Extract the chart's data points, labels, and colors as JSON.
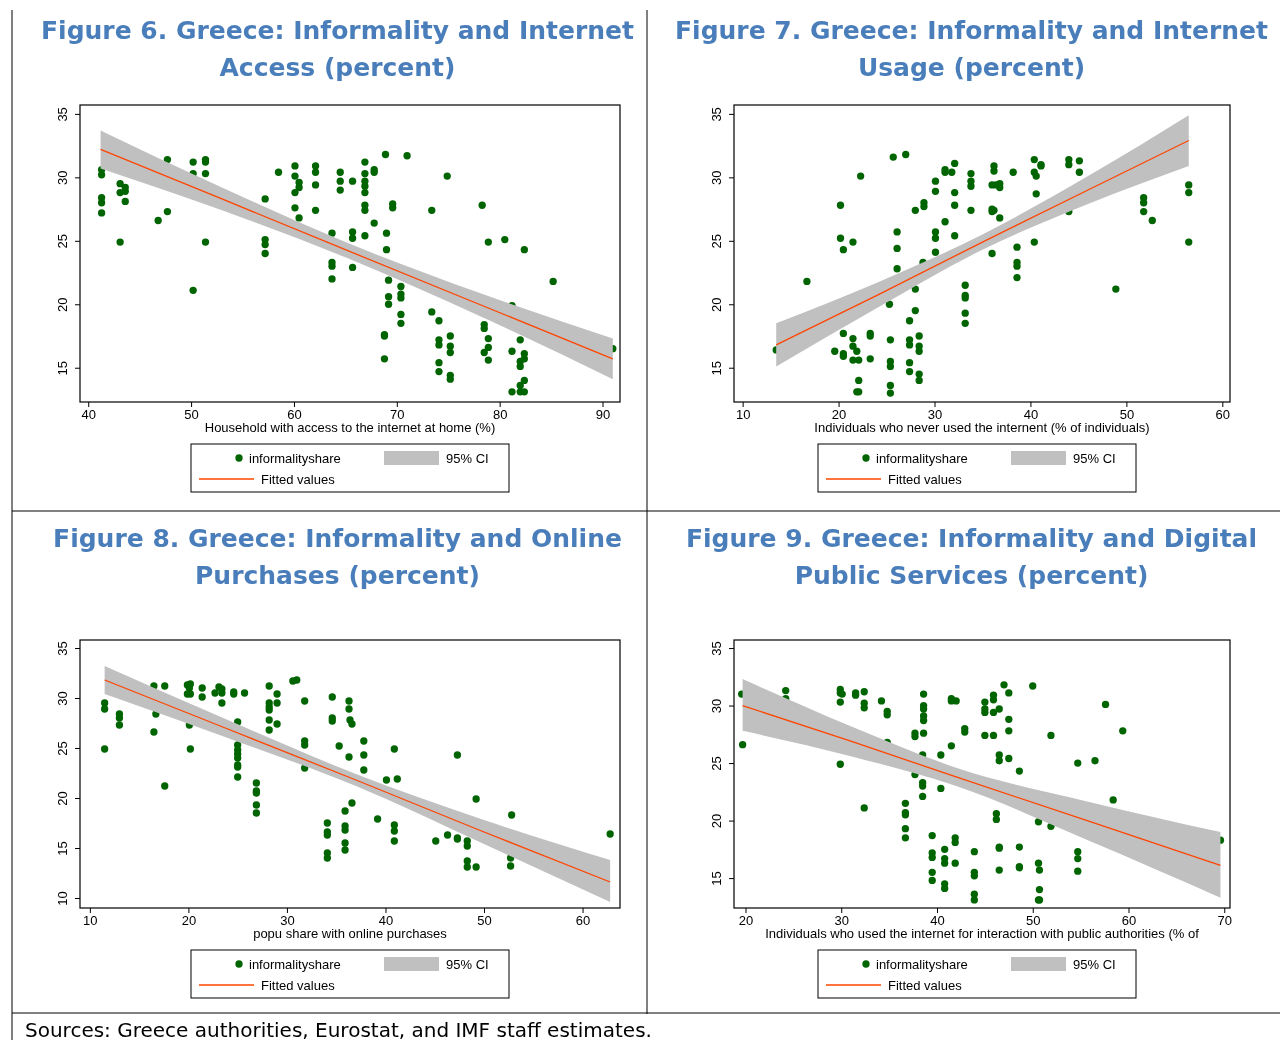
{
  "chart_data": [
    {
      "type": "scatter",
      "title": "Figure 6. Greece: Informality and Internet Access (percent)",
      "xlabel": "Household with access to the internet at home (%)",
      "xlim": [
        39.2,
        91.7
      ],
      "ylim": [
        12.3,
        35.7
      ],
      "xticks": [
        40,
        50,
        60,
        70,
        80,
        90
      ],
      "yticks": [
        15,
        20,
        25,
        30,
        35
      ],
      "legend": "bottom",
      "grid": false,
      "annotations": [
        "95% CI"
      ],
      "series": [
        {
          "name": "informalityshare",
          "type": "scatter",
          "marker": "circle",
          "color": "#006400",
          "x": [
            41.3,
            41.3,
            41.3,
            41.3,
            41.3,
            43.1,
            43.1,
            43.6,
            43.6,
            43.6,
            43.1,
            46.8,
            47.7,
            47.7,
            50.2,
            50.2,
            50.2,
            51.4,
            51.4,
            51.4,
            51.4,
            57.2,
            57.2,
            57.2,
            57.2,
            58.5,
            60.1,
            60.1,
            60.1,
            60.1,
            60.5,
            60.5,
            60.5,
            62.1,
            62.1,
            62.1,
            62.1,
            63.7,
            63.7,
            63.7,
            63.7,
            64.5,
            64.5,
            64.5,
            65.7,
            65.7,
            65.7,
            65.7,
            66.9,
            66.9,
            66.9,
            66.9,
            66.9,
            66.9,
            66.9,
            66.9,
            67.8,
            67.8,
            67.8,
            68.9,
            68.8,
            68.8,
            68.8,
            69.0,
            69.0,
            69.2,
            69.2,
            69.2,
            69.6,
            69.6,
            70.4,
            70.4,
            70.4,
            70.4,
            70.4,
            71.0,
            73.4,
            73.4,
            74.1,
            74.1,
            74.1,
            74.1,
            74.1,
            74.9,
            75.2,
            75.2,
            75.2,
            75.2,
            75.2,
            78.3,
            78.5,
            78.5,
            78.5,
            78.9,
            78.9,
            78.9,
            78.9,
            80.5,
            81.2,
            81.2,
            81.2,
            82.0,
            82.0,
            82.0,
            82.0,
            82.0,
            82.4,
            82.4,
            82.4,
            82.4,
            82.4,
            85.2,
            91.0
          ],
          "values": [
            30.6,
            30.2,
            28.4,
            28.0,
            27.2,
            29.5,
            28.8,
            29.2,
            28.9,
            28.1,
            24.9,
            26.6,
            27.3,
            31.4,
            31.2,
            30.3,
            21.1,
            31.4,
            31.2,
            30.3,
            24.9,
            28.3,
            25.1,
            24.7,
            24.0,
            30.4,
            30.9,
            30.1,
            28.8,
            27.6,
            29.6,
            29.2,
            26.8,
            30.9,
            30.4,
            29.4,
            27.4,
            25.6,
            23.3,
            23.0,
            22.0,
            30.4,
            29.7,
            29.0,
            29.7,
            25.7,
            25.2,
            22.9,
            31.2,
            30.3,
            29.7,
            29.3,
            28.8,
            27.8,
            27.4,
            25.4,
            26.4,
            30.6,
            30.4,
            31.8,
            17.6,
            15.7,
            17.5,
            25.6,
            24.3,
            21.9,
            20.6,
            20.0,
            27.9,
            27.6,
            21.4,
            20.8,
            20.5,
            19.2,
            18.5,
            31.7,
            27.4,
            19.4,
            18.7,
            17.2,
            16.8,
            15.4,
            14.7,
            30.1,
            17.5,
            16.7,
            16.2,
            14.4,
            14.1,
            27.8,
            18.4,
            18.1,
            16.2,
            17.3,
            16.6,
            15.6,
            24.9,
            25.1,
            19.9,
            16.3,
            13.1,
            17.2,
            15.5,
            15.1,
            13.6,
            13.1,
            24.3,
            16.1,
            15.7,
            14.0,
            13.1,
            21.8,
            16.5
          ]
        },
        {
          "name": "Fitted values",
          "type": "line",
          "color": "#ff4500",
          "x": [
            41.2,
            53,
            65,
            78,
            91
          ],
          "values": [
            32.2,
            28.3,
            24.3,
            20.0,
            15.7
          ],
          "lower": [
            30.7,
            27.4,
            23.7,
            19.1,
            14.1
          ],
          "upper": [
            33.7,
            29.2,
            24.9,
            20.9,
            17.3
          ]
        }
      ]
    },
    {
      "type": "scatter",
      "title": "Figure 7.  Greece: Informality and Internet Usage (percent)",
      "xlabel": "Individuals who never used the internent (% of individuals)",
      "xlim": [
        9.1,
        60.8
      ],
      "ylim": [
        12.3,
        35.7
      ],
      "xticks": [
        10,
        20,
        30,
        40,
        50,
        60
      ],
      "yticks": [
        15,
        20,
        25,
        30,
        35
      ],
      "legend": "bottom",
      "grid": false,
      "annotations": [
        "95% CI"
      ],
      "series": [
        {
          "name": "informalityshare",
          "type": "scatter",
          "marker": "circle",
          "color": "#006400",
          "x": [
            13.5,
            16.7,
            19.6,
            20.2,
            20.2,
            20.5,
            20.5,
            20.5,
            20.5,
            21.5,
            21.5,
            21.5,
            21.5,
            21.9,
            22.1,
            22.1,
            21.9,
            22.1,
            22.3,
            23.3,
            23.3,
            23.3,
            25.3,
            25.4,
            25.4,
            25.4,
            25.4,
            25.4,
            25.7,
            26.1,
            26.1,
            26.1,
            27.0,
            27.4,
            27.4,
            27.4,
            27.4,
            27.4,
            28.0,
            28.0,
            28.0,
            28.4,
            28.4,
            28.4,
            28.4,
            28.4,
            28.9,
            28.9,
            28.8,
            30.1,
            30.1,
            30.1,
            30.1,
            30.1,
            31.1,
            31.1,
            31.1,
            31.8,
            32.1,
            32.1,
            32.1,
            32.1,
            33.2,
            33.2,
            33.2,
            33.2,
            33.2,
            33.8,
            33.8,
            33.8,
            33.8,
            36.2,
            36.2,
            36.0,
            36.4,
            36.0,
            36.0,
            36.2,
            36.0,
            36.8,
            36.8,
            36.8,
            38.2,
            38.6,
            38.6,
            38.6,
            38.6,
            40.4,
            40.4,
            40.6,
            40.6,
            40.4,
            41.1,
            41.1,
            44.0,
            44.0,
            45.1,
            45.1,
            44.0,
            48.9,
            51.8,
            51.8,
            51.8,
            52.7,
            56.5,
            56.5,
            56.5
          ],
          "values": [
            16.4,
            21.8,
            16.3,
            27.8,
            25.2,
            24.3,
            17.7,
            16.1,
            15.9,
            24.9,
            17.3,
            16.7,
            15.6,
            16.3,
            15.6,
            14.0,
            13.1,
            13.1,
            30.1,
            17.7,
            17.5,
            15.7,
            20.0,
            17.2,
            15.5,
            15.1,
            13.6,
            13.0,
            31.6,
            25.7,
            24.4,
            22.8,
            31.8,
            18.7,
            17.2,
            16.8,
            15.4,
            14.7,
            27.4,
            21.2,
            19.5,
            17.5,
            16.7,
            16.3,
            14.5,
            14.0,
            28.0,
            27.7,
            23.3,
            29.7,
            28.9,
            25.7,
            25.2,
            24.1,
            30.6,
            30.4,
            26.5,
            30.4,
            31.1,
            28.8,
            27.8,
            25.4,
            21.5,
            20.7,
            20.5,
            19.3,
            18.5,
            30.3,
            29.7,
            29.3,
            27.4,
            30.9,
            30.5,
            29.4,
            29.4,
            27.5,
            27.3,
            27.4,
            24.0,
            29.5,
            29.2,
            26.8,
            30.4,
            24.5,
            23.3,
            23.0,
            22.1,
            31.4,
            30.4,
            30.1,
            28.7,
            24.9,
            31.0,
            30.9,
            31.4,
            31.0,
            31.3,
            30.4,
            27.3,
            21.2,
            28.4,
            28.0,
            27.3,
            26.6,
            29.4,
            28.8,
            24.9
          ]
        },
        {
          "name": "Fitted values",
          "type": "line",
          "color": "#ff4500",
          "x": [
            13.5,
            24,
            35,
            46,
            56.5
          ],
          "values": [
            16.8,
            20.7,
            24.9,
            29.0,
            32.9
          ],
          "lower": [
            15.1,
            19.7,
            24.3,
            27.9,
            30.9
          ],
          "upper": [
            18.5,
            21.7,
            25.5,
            30.1,
            34.9
          ]
        }
      ]
    },
    {
      "type": "scatter",
      "title": "Figure 8. Greece: Informality and Online Purchases (percent)",
      "xlabel": "popu share with online purchases",
      "xlim": [
        9.0,
        63.8
      ],
      "ylim": [
        9.0,
        35.8
      ],
      "xticks": [
        10,
        20,
        30,
        40,
        50,
        60
      ],
      "yticks": [
        10,
        15,
        20,
        25,
        30,
        35
      ],
      "legend": "bottom",
      "grid": false,
      "annotations": [
        "95% CI",
        "Sources: Greece authorities, Eurostat, and IMF staff estimates."
      ],
      "series": [
        {
          "name": "informalityshare",
          "type": "scatter",
          "marker": "circle",
          "color": "#006400",
          "x": [
            11.5,
            11.5,
            11.5,
            13.0,
            13.0,
            13.0,
            16.5,
            16.5,
            16.7,
            17.6,
            17.6,
            19.9,
            19.9,
            20.1,
            20.2,
            20.2,
            20.1,
            20.2,
            21.4,
            21.4,
            22.7,
            23.1,
            23.4,
            23.4,
            23.4,
            24.6,
            24.6,
            25.7,
            25.0,
            25.0,
            25.0,
            25.0,
            25.0,
            25.0,
            25.0,
            25.0,
            26.9,
            26.9,
            26.9,
            26.9,
            26.9,
            28.2,
            28.2,
            28.2,
            28.2,
            28.2,
            28.2,
            29.0,
            29.0,
            29.0,
            30.6,
            31.0,
            31.8,
            31.8,
            31.8,
            31.8,
            34.6,
            34.6,
            34.6,
            35.3,
            34.1,
            34.1,
            34.1,
            34.1,
            34.1,
            35.9,
            35.9,
            35.9,
            35.9,
            35.9,
            36.3,
            36.3,
            36.4,
            36.6,
            36.3,
            36.6,
            37.8,
            37.8,
            37.8,
            39.2,
            40.1,
            40.9,
            41.2,
            40.9,
            40.9,
            40.9,
            45.1,
            46.3,
            47.3,
            47.3,
            47.3,
            48.3,
            48.3,
            48.3,
            48.3,
            49.2,
            49.2,
            52.8,
            52.7,
            52.7,
            62.8
          ],
          "values": [
            29.5,
            28.9,
            24.9,
            28.4,
            28.0,
            27.3,
            31.2,
            26.6,
            28.4,
            31.2,
            21.2,
            31.3,
            30.4,
            31.0,
            31.4,
            30.4,
            27.3,
            24.9,
            31.0,
            30.1,
            30.5,
            31.1,
            30.9,
            30.5,
            29.5,
            30.6,
            30.4,
            30.5,
            27.6,
            25.3,
            24.8,
            24.4,
            24.0,
            23.3,
            23.1,
            22.1,
            21.5,
            20.7,
            20.5,
            19.3,
            18.5,
            31.2,
            29.5,
            29.1,
            28.8,
            27.8,
            26.8,
            30.4,
            29.5,
            27.4,
            31.7,
            31.8,
            29.7,
            25.7,
            25.3,
            23.0,
            30.1,
            28.0,
            27.7,
            25.2,
            17.5,
            16.6,
            16.3,
            14.5,
            14.0,
            18.7,
            17.2,
            16.8,
            15.5,
            14.8,
            29.7,
            28.9,
            27.8,
            27.4,
            24.1,
            19.5,
            25.7,
            24.3,
            22.8,
            17.9,
            21.8,
            24.9,
            21.9,
            17.3,
            16.7,
            15.7,
            15.7,
            16.3,
            24.3,
            16.0,
            15.9,
            15.7,
            15.2,
            13.7,
            13.1,
            19.9,
            13.1,
            18.3,
            14.0,
            13.2,
            16.4
          ]
        },
        {
          "name": "Fitted values",
          "type": "line",
          "color": "#ff4500",
          "x": [
            11.5,
            24,
            37,
            50,
            62.8
          ],
          "values": [
            31.8,
            26.9,
            21.8,
            16.6,
            11.6
          ],
          "lower": [
            30.4,
            26.0,
            21.2,
            15.4,
            9.6
          ],
          "upper": [
            33.2,
            27.8,
            22.4,
            17.8,
            13.8
          ]
        }
      ]
    },
    {
      "type": "scatter",
      "title": "Figure 9. Greece: Informality and Digital Public Services (percent)",
      "xlabel": "Individuals who used the internet for interaction with public authorities (% of",
      "xlim": [
        18.8,
        70.6
      ],
      "ylim": [
        12.4,
        35.7
      ],
      "xticks": [
        20,
        30,
        40,
        50,
        60,
        70
      ],
      "yticks": [
        15,
        20,
        25,
        30,
        35
      ],
      "legend": "bottom",
      "grid": false,
      "annotations": [
        "95% CI"
      ],
      "series": [
        {
          "name": "informalityshare",
          "type": "scatter",
          "marker": "circle",
          "color": "#006400",
          "x": [
            19.6,
            19.7,
            24.2,
            24.2,
            29.9,
            29.9,
            30.1,
            29.9,
            29.9,
            31.5,
            31.5,
            32.4,
            32.4,
            32.4,
            32.4,
            34.2,
            34.8,
            34.8,
            34.8,
            36.7,
            36.7,
            36.7,
            36.7,
            36.7,
            37.7,
            37.7,
            37.7,
            38.6,
            38.6,
            38.6,
            38.6,
            38.6,
            38.6,
            38.5,
            38.5,
            38.5,
            38.5,
            39.5,
            39.5,
            39.5,
            39.5,
            39.5,
            40.4,
            40.4,
            40.8,
            40.8,
            40.8,
            40.8,
            40.8,
            41.5,
            41.5,
            42.0,
            41.5,
            41.9,
            41.9,
            41.9,
            42.9,
            42.9,
            43.9,
            43.9,
            43.9,
            43.9,
            43.9,
            45.0,
            45.0,
            45.0,
            45.0,
            45.9,
            45.9,
            45.9,
            45.9,
            46.5,
            46.5,
            46.5,
            46.5,
            46.2,
            46.2,
            46.5,
            46.5,
            47.0,
            47.5,
            47.5,
            47.5,
            47.5,
            48.6,
            48.6,
            48.6,
            48.6,
            50.0,
            50.6,
            50.6,
            50.7,
            50.7,
            50.6,
            50.7,
            51.9,
            51.9,
            54.7,
            54.7,
            54.7,
            54.7,
            56.5,
            57.6,
            58.4,
            59.4,
            69.6
          ],
          "values": [
            31.0,
            26.6,
            31.3,
            30.6,
            31.4,
            31.1,
            31.0,
            30.3,
            24.9,
            31.1,
            30.9,
            31.2,
            30.2,
            29.8,
            21.1,
            30.4,
            29.5,
            29.2,
            26.8,
            21.5,
            20.7,
            20.5,
            19.3,
            18.5,
            27.6,
            27.3,
            24.0,
            31.0,
            30.0,
            29.7,
            29.1,
            28.7,
            27.6,
            23.3,
            23.0,
            22.1,
            25.7,
            18.7,
            17.2,
            16.8,
            15.5,
            14.8,
            25.7,
            22.8,
            17.5,
            16.7,
            16.3,
            14.5,
            14.1,
            30.6,
            30.4,
            30.4,
            26.5,
            18.5,
            18.1,
            16.3,
            28.0,
            27.7,
            17.3,
            15.5,
            15.2,
            13.6,
            13.1,
            30.3,
            29.7,
            29.4,
            27.4,
            30.9,
            30.5,
            29.4,
            27.4,
            29.7,
            25.7,
            25.2,
            15.7,
            20.6,
            20.1,
            17.7,
            17.6,
            31.8,
            31.1,
            28.8,
            27.8,
            25.4,
            24.3,
            17.7,
            16.0,
            15.9,
            31.7,
            19.9,
            16.3,
            15.7,
            14.0,
            13.1,
            13.1,
            27.4,
            19.5,
            25.0,
            17.3,
            16.7,
            15.6,
            25.2,
            30.1,
            21.8,
            27.8,
            18.3
          ]
        },
        {
          "name": "Fitted values",
          "type": "line",
          "color": "#ff4500",
          "x": [
            19.7,
            31,
            42,
            56,
            69.6
          ],
          "values": [
            30.0,
            26.9,
            23.8,
            19.9,
            16.1
          ],
          "lower": [
            27.8,
            25.6,
            23.0,
            18.2,
            13.3
          ],
          "upper": [
            32.3,
            28.2,
            24.6,
            21.6,
            19.0
          ]
        }
      ]
    }
  ]
}
